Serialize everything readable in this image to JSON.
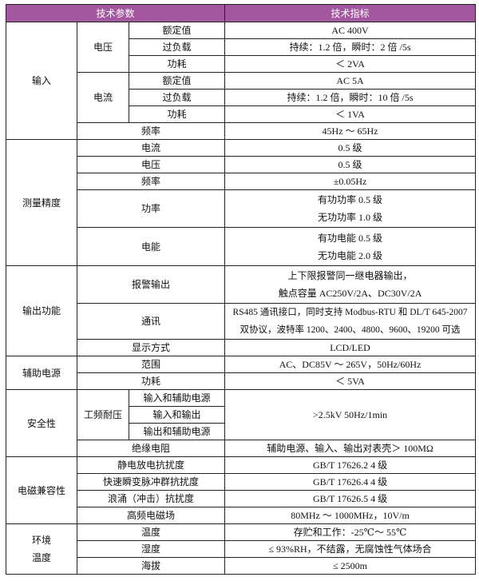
{
  "header": {
    "param": "技术参数",
    "spec": "技术指标"
  },
  "colors": {
    "header_bg": "#A3579F",
    "header_text": "#FFFFFF",
    "border": "#222222"
  },
  "input": {
    "group": "输入",
    "voltage": {
      "label": "电压",
      "rated": "额定值",
      "rated_v": "AC 400V",
      "overload": "过负载",
      "overload_v": "持续：1.2 倍，瞬时：2 倍 /5s",
      "power": "功耗",
      "power_v": "＜ 2VA"
    },
    "current": {
      "label": "电流",
      "rated": "额定值",
      "rated_v": "AC 5A",
      "overload": "过负载",
      "overload_v": "持续：1.2 倍，瞬时：10 倍 /5s",
      "power": "功耗",
      "power_v": "＜ 1VA"
    },
    "freq": "频率",
    "freq_v": "45Hz ～ 65Hz"
  },
  "accuracy": {
    "group": "测量精度",
    "current": "电流",
    "current_v": "0.5 级",
    "voltage": "电压",
    "voltage_v": "0.5 级",
    "freq": "频率",
    "freq_v": "±0.05Hz",
    "power": "功率",
    "power_v1": "有功功率 0.5 级",
    "power_v2": "无功功率 1.0 级",
    "energy": "电能",
    "energy_v1": "有功电能 0.5 级",
    "energy_v2": "无功电能 2.0 级"
  },
  "output": {
    "group": "输出功能",
    "alarm": "报警输出",
    "alarm_v1": "上下限报警同一继电器输出，",
    "alarm_v2": "触点容量 AC250V/2A、DC30V/2A",
    "comm": "通讯",
    "comm_v1": "RS485 通讯接口，同时支持 Modbus-RTU 和 DL/T 645-2007",
    "comm_v2": "双协议，波特率 1200、2400、4800、9600、19200 可选",
    "display": "显示方式",
    "display_v": "LCD/LED"
  },
  "aux": {
    "group": "辅助电源",
    "range": "范围",
    "range_v": "AC、DC85V ～ 265V，50Hz/60Hz",
    "power": "功耗",
    "power_v": "＜ 5VA"
  },
  "safety": {
    "group": "安全性",
    "withstand": "工频耐压",
    "w1": "输入和辅助电源",
    "w2": "输入和输出",
    "w3": "输出和辅助电源",
    "withstand_v": ">2.5kV 50Hz/1min",
    "insulation": "绝缘电阻",
    "insulation_v": "辅助电源、输入、输出对表壳＞ 100MΩ"
  },
  "emc": {
    "group": "电磁兼容性",
    "esd": "静电放电抗扰度",
    "esd_v": "GB/T 17626.2 4 级",
    "eft": "快速瞬变脉冲群抗扰度",
    "eft_v": "GB/T 17626.4 4 级",
    "surge": "浪涌（冲击）抗扰度",
    "surge_v": "GB/T 17626.5 4 级",
    "rf": "高频电磁场",
    "rf_v": "80MHz ～ 1000MHz，10V/m"
  },
  "env": {
    "group1": "环境",
    "group2": "温度",
    "temp": "温度",
    "temp_v": "存贮和工作：-25℃～ 55℃",
    "humidity": "湿度",
    "humidity_v": "≤ 93%RH，不结露，无腐蚀性气体场合",
    "altitude": "海拔",
    "altitude_v": "≤ 2500m"
  }
}
